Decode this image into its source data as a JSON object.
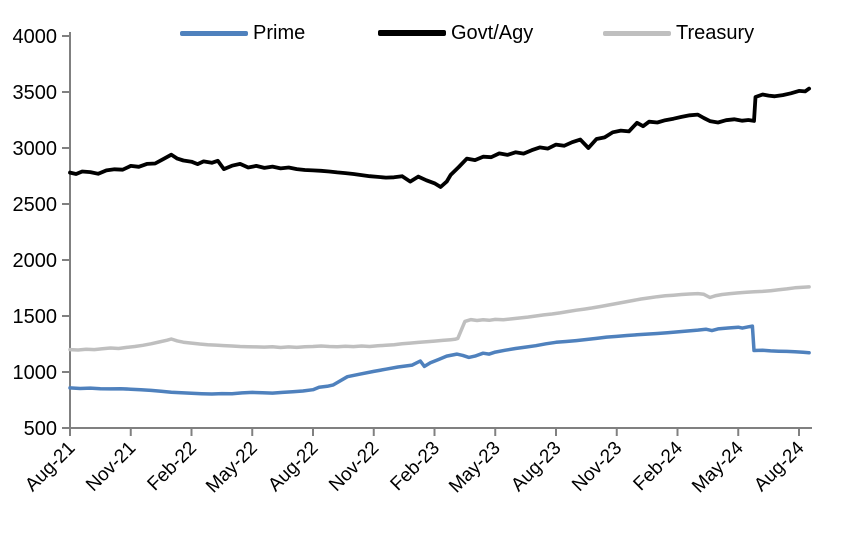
{
  "chart_data": {
    "type": "line",
    "title": "",
    "xlabel": "",
    "ylabel": "",
    "ylim": [
      500,
      4000
    ],
    "y_ticks": [
      500,
      1000,
      1500,
      2000,
      2500,
      3000,
      3500,
      4000
    ],
    "x_tick_labels": [
      "Aug-21",
      "Nov-21",
      "Feb-22",
      "May-22",
      "Aug-22",
      "Nov-22",
      "Feb-23",
      "May-23",
      "Aug-23",
      "Nov-23",
      "Feb-24",
      "May-24",
      "Aug-24"
    ],
    "x_unit_note": "x = months after Aug-2021, ticks every 3 months",
    "x_range_months": [
      0,
      36.5
    ],
    "grid": false,
    "legend_position": "top",
    "axis_color": "#808080",
    "label_color": "#000000",
    "series": [
      {
        "name": "Prime",
        "color": "#4f81bd",
        "points": [
          [
            0,
            858
          ],
          [
            0.5,
            853
          ],
          [
            1,
            856
          ],
          [
            1.5,
            851
          ],
          [
            2,
            849
          ],
          [
            2.5,
            851
          ],
          [
            3,
            846
          ],
          [
            3.5,
            841
          ],
          [
            4,
            836
          ],
          [
            4.5,
            828
          ],
          [
            5,
            820
          ],
          [
            5.5,
            814
          ],
          [
            6,
            810
          ],
          [
            6.5,
            806
          ],
          [
            7,
            804
          ],
          [
            7.5,
            807
          ],
          [
            8,
            806
          ],
          [
            8.5,
            813
          ],
          [
            9,
            818
          ],
          [
            9.5,
            814
          ],
          [
            10,
            812
          ],
          [
            10.5,
            818
          ],
          [
            11,
            823
          ],
          [
            11.5,
            830
          ],
          [
            12,
            842
          ],
          [
            12.3,
            864
          ],
          [
            12.7,
            872
          ],
          [
            13,
            885
          ],
          [
            13.7,
            958
          ],
          [
            14.3,
            980
          ],
          [
            15,
            1005
          ],
          [
            15.6,
            1025
          ],
          [
            16.2,
            1045
          ],
          [
            16.9,
            1062
          ],
          [
            17.3,
            1098
          ],
          [
            17.5,
            1050
          ],
          [
            17.8,
            1082
          ],
          [
            18.2,
            1112
          ],
          [
            18.6,
            1142
          ],
          [
            19.1,
            1160
          ],
          [
            19.4,
            1148
          ],
          [
            19.7,
            1130
          ],
          [
            20,
            1142
          ],
          [
            20.4,
            1168
          ],
          [
            20.7,
            1160
          ],
          [
            21,
            1178
          ],
          [
            21.5,
            1195
          ],
          [
            22,
            1210
          ],
          [
            22.5,
            1222
          ],
          [
            23,
            1235
          ],
          [
            23.5,
            1252
          ],
          [
            24,
            1265
          ],
          [
            24.5,
            1272
          ],
          [
            25,
            1280
          ],
          [
            25.5,
            1290
          ],
          [
            26,
            1300
          ],
          [
            26.5,
            1312
          ],
          [
            27,
            1318
          ],
          [
            27.5,
            1326
          ],
          [
            28,
            1332
          ],
          [
            28.5,
            1338
          ],
          [
            29,
            1344
          ],
          [
            29.5,
            1350
          ],
          [
            30,
            1358
          ],
          [
            30.5,
            1366
          ],
          [
            31,
            1374
          ],
          [
            31.4,
            1382
          ],
          [
            31.7,
            1370
          ],
          [
            32,
            1385
          ],
          [
            32.5,
            1393
          ],
          [
            33,
            1400
          ],
          [
            33.2,
            1392
          ],
          [
            33.5,
            1404
          ],
          [
            33.7,
            1410
          ],
          [
            33.78,
            1192
          ],
          [
            34.2,
            1194
          ],
          [
            34.6,
            1188
          ],
          [
            35,
            1186
          ],
          [
            35.4,
            1184
          ],
          [
            35.8,
            1180
          ],
          [
            36.2,
            1176
          ],
          [
            36.5,
            1172
          ]
        ]
      },
      {
        "name": "Govt/Agy",
        "color": "#000000",
        "points": [
          [
            0,
            2780
          ],
          [
            0.3,
            2768
          ],
          [
            0.6,
            2790
          ],
          [
            1,
            2785
          ],
          [
            1.4,
            2770
          ],
          [
            1.8,
            2800
          ],
          [
            2.2,
            2810
          ],
          [
            2.6,
            2806
          ],
          [
            3,
            2840
          ],
          [
            3.4,
            2832
          ],
          [
            3.8,
            2858
          ],
          [
            4.2,
            2862
          ],
          [
            4.6,
            2900
          ],
          [
            5,
            2940
          ],
          [
            5.3,
            2905
          ],
          [
            5.6,
            2888
          ],
          [
            6,
            2878
          ],
          [
            6.3,
            2856
          ],
          [
            6.6,
            2880
          ],
          [
            7,
            2868
          ],
          [
            7.3,
            2886
          ],
          [
            7.6,
            2812
          ],
          [
            8,
            2842
          ],
          [
            8.4,
            2858
          ],
          [
            8.8,
            2826
          ],
          [
            9.2,
            2840
          ],
          [
            9.6,
            2822
          ],
          [
            10,
            2834
          ],
          [
            10.4,
            2818
          ],
          [
            10.8,
            2826
          ],
          [
            11.2,
            2812
          ],
          [
            11.6,
            2804
          ],
          [
            12,
            2800
          ],
          [
            12.4,
            2796
          ],
          [
            12.8,
            2790
          ],
          [
            13.2,
            2782
          ],
          [
            13.6,
            2776
          ],
          [
            14,
            2768
          ],
          [
            14.4,
            2758
          ],
          [
            14.8,
            2748
          ],
          [
            15.2,
            2742
          ],
          [
            15.6,
            2736
          ],
          [
            16,
            2738
          ],
          [
            16.4,
            2748
          ],
          [
            16.8,
            2700
          ],
          [
            17.2,
            2745
          ],
          [
            17.6,
            2712
          ],
          [
            18,
            2685
          ],
          [
            18.3,
            2652
          ],
          [
            18.6,
            2700
          ],
          [
            18.8,
            2760
          ],
          [
            19.2,
            2830
          ],
          [
            19.6,
            2905
          ],
          [
            20,
            2892
          ],
          [
            20.4,
            2922
          ],
          [
            20.8,
            2918
          ],
          [
            21.2,
            2952
          ],
          [
            21.6,
            2938
          ],
          [
            22,
            2962
          ],
          [
            22.4,
            2950
          ],
          [
            22.8,
            2980
          ],
          [
            23.2,
            3005
          ],
          [
            23.6,
            2995
          ],
          [
            24,
            3030
          ],
          [
            24.4,
            3020
          ],
          [
            24.8,
            3052
          ],
          [
            25.2,
            3075
          ],
          [
            25.6,
            3000
          ],
          [
            26,
            3080
          ],
          [
            26.4,
            3095
          ],
          [
            26.8,
            3140
          ],
          [
            27.2,
            3155
          ],
          [
            27.6,
            3148
          ],
          [
            28,
            3225
          ],
          [
            28.3,
            3195
          ],
          [
            28.6,
            3235
          ],
          [
            29,
            3228
          ],
          [
            29.4,
            3248
          ],
          [
            29.8,
            3262
          ],
          [
            30.2,
            3278
          ],
          [
            30.6,
            3292
          ],
          [
            31,
            3298
          ],
          [
            31.3,
            3268
          ],
          [
            31.6,
            3240
          ],
          [
            32,
            3228
          ],
          [
            32.4,
            3248
          ],
          [
            32.8,
            3256
          ],
          [
            33.2,
            3244
          ],
          [
            33.5,
            3250
          ],
          [
            33.78,
            3242
          ],
          [
            33.85,
            3455
          ],
          [
            34.2,
            3478
          ],
          [
            34.5,
            3468
          ],
          [
            34.8,
            3462
          ],
          [
            35.2,
            3472
          ],
          [
            35.6,
            3488
          ],
          [
            36,
            3510
          ],
          [
            36.3,
            3505
          ],
          [
            36.5,
            3530
          ]
        ]
      },
      {
        "name": "Treasury",
        "color": "#bfbfbf",
        "points": [
          [
            0,
            1200
          ],
          [
            0.4,
            1196
          ],
          [
            0.8,
            1204
          ],
          [
            1.2,
            1200
          ],
          [
            1.6,
            1208
          ],
          [
            2,
            1214
          ],
          [
            2.4,
            1210
          ],
          [
            2.8,
            1220
          ],
          [
            3.2,
            1228
          ],
          [
            3.6,
            1238
          ],
          [
            4,
            1252
          ],
          [
            4.4,
            1268
          ],
          [
            4.8,
            1284
          ],
          [
            5,
            1295
          ],
          [
            5.3,
            1278
          ],
          [
            5.6,
            1266
          ],
          [
            6,
            1258
          ],
          [
            6.4,
            1250
          ],
          [
            6.8,
            1244
          ],
          [
            7.2,
            1240
          ],
          [
            7.6,
            1236
          ],
          [
            8,
            1232
          ],
          [
            8.4,
            1228
          ],
          [
            8.8,
            1226
          ],
          [
            9.2,
            1224
          ],
          [
            9.6,
            1222
          ],
          [
            10,
            1225
          ],
          [
            10.4,
            1219
          ],
          [
            10.8,
            1224
          ],
          [
            11.2,
            1220
          ],
          [
            11.6,
            1226
          ],
          [
            12,
            1228
          ],
          [
            12.4,
            1232
          ],
          [
            12.8,
            1228
          ],
          [
            13.2,
            1225
          ],
          [
            13.6,
            1230
          ],
          [
            14,
            1227
          ],
          [
            14.4,
            1232
          ],
          [
            14.8,
            1228
          ],
          [
            15.2,
            1234
          ],
          [
            15.6,
            1238
          ],
          [
            16,
            1244
          ],
          [
            16.4,
            1252
          ],
          [
            16.8,
            1258
          ],
          [
            17.2,
            1264
          ],
          [
            17.6,
            1270
          ],
          [
            18,
            1276
          ],
          [
            18.4,
            1282
          ],
          [
            18.8,
            1288
          ],
          [
            19,
            1292
          ],
          [
            19.15,
            1300
          ],
          [
            19.5,
            1452
          ],
          [
            19.8,
            1468
          ],
          [
            20.1,
            1460
          ],
          [
            20.4,
            1466
          ],
          [
            20.7,
            1462
          ],
          [
            21,
            1470
          ],
          [
            21.4,
            1466
          ],
          [
            21.8,
            1474
          ],
          [
            22.2,
            1482
          ],
          [
            22.6,
            1490
          ],
          [
            23,
            1500
          ],
          [
            23.4,
            1510
          ],
          [
            23.8,
            1518
          ],
          [
            24.2,
            1528
          ],
          [
            24.6,
            1540
          ],
          [
            25,
            1552
          ],
          [
            25.4,
            1562
          ],
          [
            25.8,
            1572
          ],
          [
            26.2,
            1585
          ],
          [
            26.6,
            1598
          ],
          [
            27,
            1612
          ],
          [
            27.4,
            1625
          ],
          [
            27.8,
            1638
          ],
          [
            28.2,
            1652
          ],
          [
            28.6,
            1662
          ],
          [
            29,
            1672
          ],
          [
            29.4,
            1680
          ],
          [
            29.8,
            1686
          ],
          [
            30.2,
            1692
          ],
          [
            30.6,
            1696
          ],
          [
            31,
            1700
          ],
          [
            31.3,
            1694
          ],
          [
            31.6,
            1665
          ],
          [
            31.9,
            1682
          ],
          [
            32.2,
            1692
          ],
          [
            32.6,
            1700
          ],
          [
            33,
            1706
          ],
          [
            33.4,
            1712
          ],
          [
            33.8,
            1716
          ],
          [
            34.2,
            1720
          ],
          [
            34.6,
            1726
          ],
          [
            35,
            1734
          ],
          [
            35.4,
            1742
          ],
          [
            35.8,
            1752
          ],
          [
            36.2,
            1756
          ],
          [
            36.5,
            1760
          ]
        ]
      }
    ]
  }
}
